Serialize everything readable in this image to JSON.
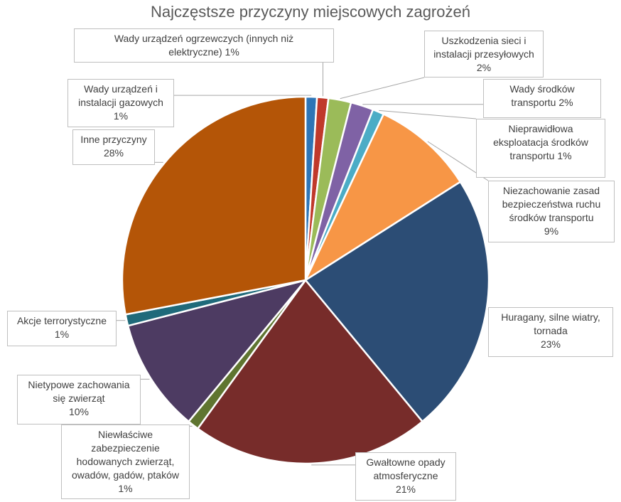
{
  "chart_data": {
    "type": "pie",
    "title": "Najczęstsze przyczyny miejscowych zagrożeń",
    "slices": [
      {
        "name": "Wady urządzeń i instalacji gazowych",
        "label_lines": [
          "Wady urządzeń i",
          "instalacji gazowych",
          "1%"
        ],
        "value": 1,
        "color": "#2e75b6"
      },
      {
        "name": "Wady urządzeń ogrzewczych (innych niż elektryczne)",
        "label_lines": [
          "Wady urządzeń ogrzewczych (innych niż",
          "elektryczne) 1%"
        ],
        "value": 1,
        "color": "#c0392b"
      },
      {
        "name": "Uszkodzenia sieci i instalacji przesyłowych",
        "label_lines": [
          "Uszkodzenia sieci i",
          "instalacji przesyłowych",
          "2%"
        ],
        "value": 2,
        "color": "#9bbb59"
      },
      {
        "name": "Wady środków transportu",
        "label_lines": [
          "Wady środków",
          "transportu 2%"
        ],
        "value": 2,
        "color": "#7f62a5"
      },
      {
        "name": "Nieprawidłowa eksploatacja środków transportu",
        "label_lines": [
          "Nieprawidłowa",
          "eksploatacja środków",
          "transportu 1%"
        ],
        "value": 1,
        "color": "#4bacc6"
      },
      {
        "name": "Niezachowanie zasad bezpieczeństwa ruchu środków transportu",
        "label_lines": [
          "Niezachowanie zasad",
          "bezpieczeństwa ruchu",
          "środków transportu",
          "9%"
        ],
        "value": 9,
        "color": "#f79646"
      },
      {
        "name": "Huragany, silne wiatry, tornada",
        "label_lines": [
          "Huragany, silne wiatry,",
          "tornada",
          "23%"
        ],
        "value": 23,
        "color": "#2c4d75"
      },
      {
        "name": "Gwałtowne opady atmosferyczne",
        "label_lines": [
          "Gwałtowne opady",
          "atmosferyczne",
          "21%"
        ],
        "value": 21,
        "color": "#772c2a"
      },
      {
        "name": "Niewłaściwe zabezpieczenie hodowanych zwierząt, owadów, gadów, ptaków",
        "label_lines": [
          "Niewłaściwe",
          "zabezpieczenie",
          "hodowanych zwierząt,",
          "owadów, gadów, ptaków",
          "1%"
        ],
        "value": 1,
        "color": "#5f7530"
      },
      {
        "name": "Nietypowe zachowania się zwierząt",
        "label_lines": [
          "Nietypowe zachowania",
          "się zwierząt",
          "10%"
        ],
        "value": 10,
        "color": "#4d3b62"
      },
      {
        "name": "Akcje terrorystyczne",
        "label_lines": [
          "Akcje terrorystyczne",
          "1%"
        ],
        "value": 1,
        "color": "#1f6a7a"
      },
      {
        "name": "Inne przyczyny",
        "label_lines": [
          "Inne przyczyny",
          "28%"
        ],
        "value": 28,
        "color": "#b45507"
      }
    ],
    "start_angle_deg": 0,
    "direction": "clockwise",
    "legend": "none",
    "data_labels": "callouts"
  }
}
